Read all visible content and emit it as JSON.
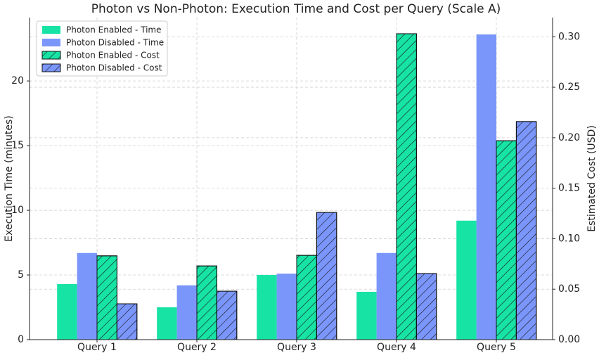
{
  "chart_data": {
    "type": "bar",
    "title": "Photon vs Non-Photon: Execution Time and Cost per Query (Scale A)",
    "y_label": "Execution Time (minutes)",
    "y2_label": "Estimated Cost (USD)",
    "categories": [
      "Query 1",
      "Query 2",
      "Query 3",
      "Query 4",
      "Query 5"
    ],
    "series": [
      {
        "name": "Photon Enabled - Time",
        "color": "#17e3a5",
        "values": [
          4.3,
          2.5,
          5.0,
          3.7,
          9.2
        ]
      },
      {
        "name": "Photon Disabled - Time",
        "color": "#7b96fb",
        "values": [
          6.7,
          4.2,
          5.1,
          6.7,
          23.6
        ]
      },
      {
        "name": "Photon Enabled - Cost",
        "color": "#17e3a5",
        "hatch": true,
        "axis": "y2",
        "values": [
          0.083,
          0.073,
          0.0835,
          0.303,
          0.197
        ]
      },
      {
        "name": "Photon Disabled - Cost",
        "color": "#7b96fb",
        "hatch": true,
        "axis": "y2",
        "values": [
          0.0355,
          0.048,
          0.126,
          0.0655,
          0.216
        ]
      }
    ],
    "ylim": [
      0,
      24.9
    ],
    "yticks": [
      0,
      5,
      10,
      15,
      20
    ],
    "y2lim": [
      0,
      0.319
    ],
    "y2ticks": [
      {
        "value": 0,
        "label": "0.00"
      },
      {
        "value": 0.05,
        "label": "0.05"
      },
      {
        "value": 0.1,
        "label": "0.10"
      },
      {
        "value": 0.15,
        "label": "0.15"
      },
      {
        "value": 0.2,
        "label": "0.20"
      },
      {
        "value": 0.25,
        "label": "0.25"
      },
      {
        "value": 0.3,
        "label": "0.30"
      }
    ],
    "grid": true,
    "legend": "upper left"
  }
}
